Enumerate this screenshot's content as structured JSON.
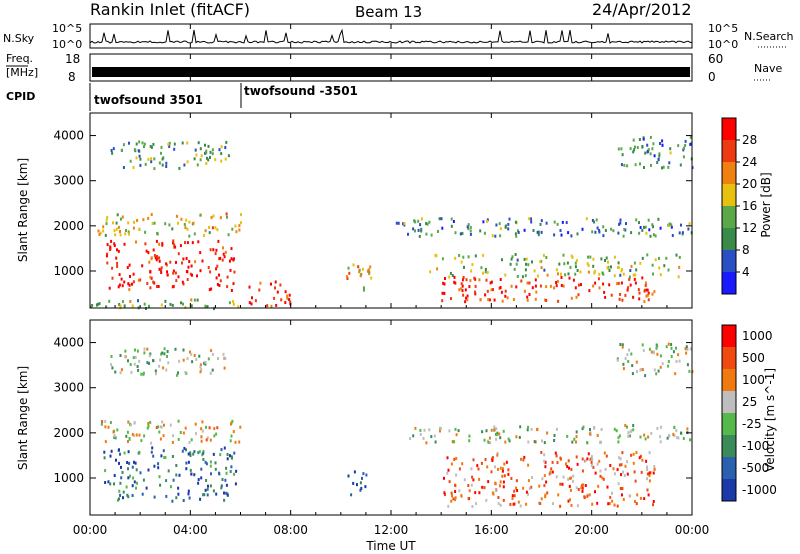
{
  "header": {
    "station": "Rankin Inlet (fitACF)",
    "beam": "Beam 13",
    "date": "24/Apr/2012"
  },
  "noise_panel": {
    "left_label": "N.Sky",
    "right_label": "N.Search",
    "left_ticks": [
      "10^5",
      "10^0"
    ],
    "right_ticks": [
      "10^5",
      "10^0"
    ]
  },
  "freq_panel": {
    "left_label_line1": "Freq.",
    "left_label_line2": "[MHz]",
    "right_label": "Nave",
    "left_ticks": [
      "18",
      "8"
    ],
    "right_ticks": [
      "60",
      "0"
    ]
  },
  "cpid_panel": {
    "label": "CPID",
    "segments": [
      {
        "start_hour": 0,
        "name": "twofsound  3501"
      },
      {
        "start_hour": 6,
        "name": "twofsound  -3501"
      }
    ]
  },
  "colors": {
    "power_scale": [
      "#1a1aff",
      "#2a4fc4",
      "#3a8a4a",
      "#5aa84a",
      "#e8c010",
      "#f08010",
      "#ee3a10",
      "#ff0000"
    ],
    "velocity_scale": [
      "#1a3aa8",
      "#2a60b0",
      "#3a8a5a",
      "#55b84a",
      "#bebebe",
      "#f07a10",
      "#f04a10",
      "#ff0000"
    ]
  },
  "chart_data": [
    {
      "type": "heatmap",
      "name": "power",
      "ylabel": "Slant Range [km]",
      "yticks": [
        1000,
        2000,
        3000,
        4000
      ],
      "ylim": [
        180,
        4500
      ],
      "xlim_hours": [
        0,
        24
      ],
      "colorbar_label": "Power [dB]",
      "colorbar_ticks": [
        4,
        8,
        12,
        16,
        20,
        24,
        28
      ],
      "colorbar_range": [
        0,
        32
      ],
      "scatter_regions": [
        {
          "t": [
            0.3,
            6.0
          ],
          "r": [
            1800,
            2300
          ],
          "level": 0.55
        },
        {
          "t": [
            0.5,
            5.8
          ],
          "r": [
            600,
            1700
          ],
          "level": 0.9
        },
        {
          "t": [
            0.8,
            5.5
          ],
          "r": [
            3300,
            3900
          ],
          "level": 0.35
        },
        {
          "t": [
            0.0,
            6.0
          ],
          "r": [
            200,
            400
          ],
          "level": 0.45
        },
        {
          "t": [
            6.3,
            8.0
          ],
          "r": [
            250,
            800
          ],
          "level": 0.9
        },
        {
          "t": [
            10.2,
            11.2
          ],
          "r": [
            600,
            1200
          ],
          "level": 0.6
        },
        {
          "t": [
            12.0,
            24.0
          ],
          "r": [
            1800,
            2200
          ],
          "level": 0.3
        },
        {
          "t": [
            13.5,
            23.5
          ],
          "r": [
            900,
            1400
          ],
          "level": 0.45
        },
        {
          "t": [
            14.0,
            22.5
          ],
          "r": [
            350,
            900
          ],
          "level": 0.85
        },
        {
          "t": [
            21.0,
            24.0
          ],
          "r": [
            3300,
            4000
          ],
          "level": 0.3
        }
      ]
    },
    {
      "type": "heatmap",
      "name": "velocity",
      "ylabel": "Slant Range [km]",
      "xlabel": "Time UT",
      "xticks": [
        "00:00",
        "04:00",
        "08:00",
        "12:00",
        "16:00",
        "20:00",
        "00:00"
      ],
      "yticks": [
        1000,
        2000,
        3000,
        4000
      ],
      "ylim": [
        180,
        4500
      ],
      "xlim_hours": [
        0,
        24
      ],
      "colorbar_label": "Velocity [m s^-1]",
      "colorbar_ticks": [
        "1000",
        "500",
        "100",
        "25",
        "-25",
        "-100",
        "-500",
        "-1000"
      ],
      "scatter_regions": [
        {
          "t": [
            0.3,
            6.0
          ],
          "r": [
            1800,
            2300
          ],
          "level": 0.55
        },
        {
          "t": [
            0.5,
            5.8
          ],
          "r": [
            500,
            1700
          ],
          "level": 0.2
        },
        {
          "t": [
            0.8,
            5.5
          ],
          "r": [
            3300,
            3900
          ],
          "level": 0.5
        },
        {
          "t": [
            10.2,
            11.0
          ],
          "r": [
            500,
            1200
          ],
          "level": 0.05
        },
        {
          "t": [
            12.5,
            24.0
          ],
          "r": [
            1800,
            2200
          ],
          "level": 0.5
        },
        {
          "t": [
            14.0,
            22.5
          ],
          "r": [
            400,
            1600
          ],
          "level": 0.75
        },
        {
          "t": [
            21.0,
            24.0
          ],
          "r": [
            3300,
            4000
          ],
          "level": 0.5
        }
      ]
    }
  ]
}
